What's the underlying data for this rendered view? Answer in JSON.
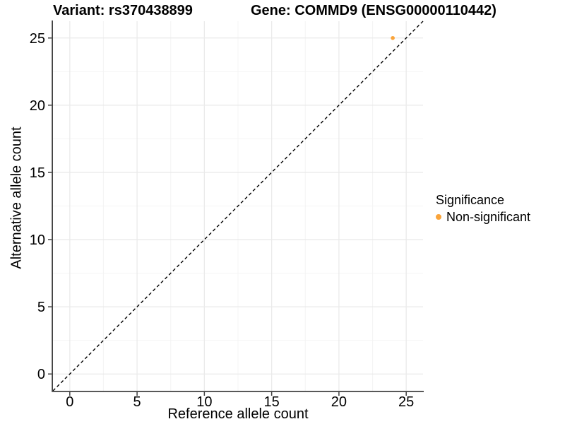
{
  "chart_data": {
    "type": "scatter",
    "title_left": "Variant: rs370438899",
    "title_right": "Gene: COMMD9 (ENSG00000110442)",
    "xlabel": "Reference allele count",
    "ylabel": "Alternative allele count",
    "xlim": [
      -1.25,
      26.25
    ],
    "ylim": [
      -1.25,
      26.25
    ],
    "x_ticks": [
      0,
      5,
      10,
      15,
      20,
      25
    ],
    "y_ticks": [
      0,
      5,
      10,
      15,
      20,
      25
    ],
    "x_minor_ticks": [
      2.5,
      7.5,
      12.5,
      17.5,
      22.5
    ],
    "y_minor_ticks": [
      2.5,
      7.5,
      12.5,
      17.5,
      22.5
    ],
    "grid": true,
    "identity_line": {
      "slope": 1,
      "intercept": 0,
      "style": "dashed",
      "color": "#000000"
    },
    "series": [
      {
        "name": "Non-significant",
        "color": "#faa43a",
        "points": [
          {
            "x": 24,
            "y": 25
          }
        ]
      }
    ],
    "legend": {
      "title": "Significance",
      "position": "right"
    },
    "colors": {
      "axis_line": "#404040",
      "tick_mark": "#404040",
      "grid_major": "#eaeaea",
      "grid_minor": "#f4f4f4",
      "point_non_significant": "#faa43a"
    }
  }
}
